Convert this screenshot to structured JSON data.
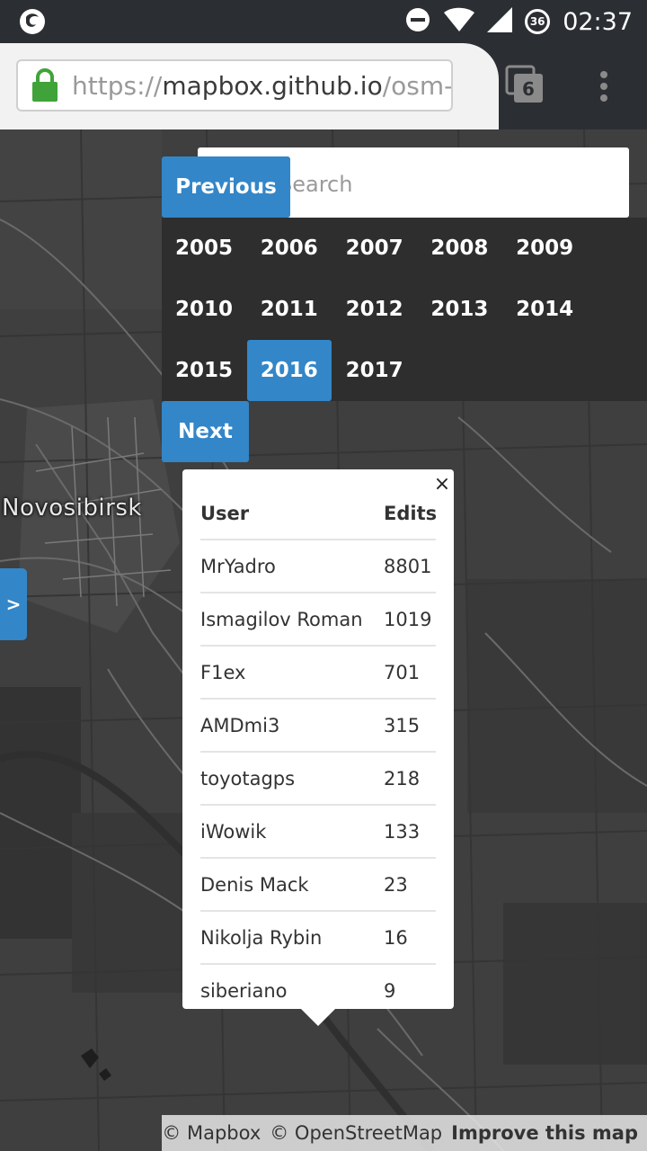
{
  "status_bar": {
    "time": "02:37",
    "data_badge": "36"
  },
  "browser": {
    "url_scheme": "https://",
    "url_host": "mapbox.github.io",
    "url_path": "/osm-a",
    "tab_count": "6"
  },
  "map": {
    "city_label": "Novosibirsk",
    "side_tab_label": ">",
    "search_placeholder": "Search",
    "prev_label": "Previous",
    "next_label": "Next",
    "years": [
      "2005",
      "2006",
      "2007",
      "2008",
      "2009",
      "2010",
      "2011",
      "2012",
      "2013",
      "2014",
      "2015",
      "2016",
      "2017"
    ],
    "active_year": "2016"
  },
  "popup": {
    "close_label": "×",
    "header": {
      "user": "User",
      "edits": "Edits"
    },
    "rows": [
      {
        "user": "MrYadro",
        "edits": "8801"
      },
      {
        "user": "Ismagilov Roman",
        "edits": "1019"
      },
      {
        "user": "F1ex",
        "edits": "701"
      },
      {
        "user": "AMDmi3",
        "edits": "315"
      },
      {
        "user": "toyotagps",
        "edits": "218"
      },
      {
        "user": "iWowik",
        "edits": "133"
      },
      {
        "user": "Denis Mack",
        "edits": "23"
      },
      {
        "user": "Nikolja Rybin",
        "edits": "16"
      },
      {
        "user": "siberiano",
        "edits": "9"
      }
    ]
  },
  "attribution": {
    "mapbox": "© Mapbox",
    "osm": "© OpenStreetMap",
    "improve": "Improve this map"
  },
  "colors": {
    "accent": "#3386c8",
    "map_background": "#404040",
    "status_bar": "#2b2f33"
  }
}
